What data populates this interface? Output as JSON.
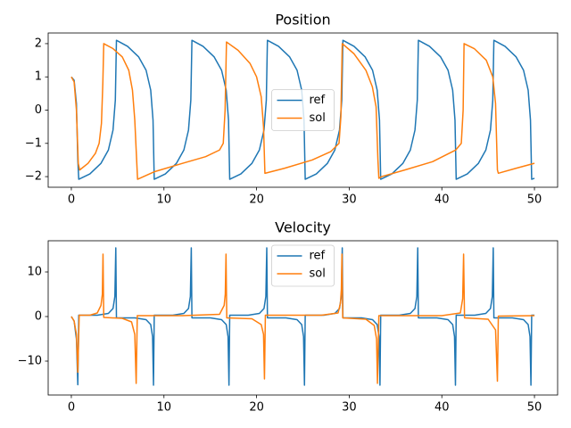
{
  "chart_data": [
    {
      "type": "line",
      "title": "Position",
      "xlim": [
        -2.5,
        52.5
      ],
      "ylim": [
        -2.32,
        2.32
      ],
      "xticks": [
        0,
        10,
        20,
        30,
        40,
        50
      ],
      "yticks": [
        {
          "value": -2,
          "label": "−2"
        },
        {
          "value": -1,
          "label": "−1"
        },
        0,
        1,
        2
      ],
      "legend": "center",
      "series": [
        {
          "name": "ref",
          "color": "#1f77b4",
          "x": [
            0,
            0.3,
            0.55,
            0.7,
            0.8,
            2.0,
            3.2,
            4.0,
            4.5,
            4.75,
            4.87,
            6.07,
            7.27,
            8.07,
            8.57,
            8.82,
            8.95,
            10.15,
            11.35,
            12.15,
            12.65,
            12.9,
            13.02,
            14.22,
            15.42,
            16.22,
            16.72,
            16.97,
            17.1,
            18.3,
            19.5,
            20.3,
            20.8,
            21.05,
            21.17,
            22.37,
            23.57,
            24.37,
            24.87,
            25.12,
            25.25,
            26.45,
            27.65,
            28.45,
            28.95,
            29.2,
            29.32,
            30.52,
            31.72,
            32.52,
            33.02,
            33.27,
            33.4,
            34.6,
            35.8,
            36.6,
            37.1,
            37.35,
            37.47,
            38.67,
            39.87,
            40.67,
            41.17,
            41.42,
            41.55,
            42.75,
            43.95,
            44.75,
            45.25,
            45.5,
            45.62,
            46.82,
            48.02,
            48.82,
            49.32,
            49.57,
            49.7,
            50
          ],
          "values": [
            1.0,
            0.9,
            0.2,
            -1.5,
            -2.08,
            -1.92,
            -1.6,
            -1.2,
            -0.6,
            0.3,
            2.1,
            1.92,
            1.6,
            1.2,
            0.6,
            -0.3,
            -2.08,
            -1.92,
            -1.6,
            -1.2,
            -0.6,
            0.3,
            2.1,
            1.92,
            1.6,
            1.2,
            0.6,
            -0.3,
            -2.08,
            -1.92,
            -1.6,
            -1.2,
            -0.6,
            0.3,
            2.1,
            1.92,
            1.6,
            1.2,
            0.6,
            -0.3,
            -2.08,
            -1.92,
            -1.6,
            -1.2,
            -0.6,
            0.3,
            2.1,
            1.92,
            1.6,
            1.2,
            0.6,
            -0.3,
            -2.08,
            -1.92,
            -1.6,
            -1.2,
            -0.6,
            0.3,
            2.1,
            1.92,
            1.6,
            1.2,
            0.6,
            -0.3,
            -2.08,
            -1.92,
            -1.6,
            -1.2,
            -0.6,
            0.3,
            2.1,
            1.92,
            1.6,
            1.2,
            0.6,
            -0.3,
            -2.08,
            -2.05
          ]
        },
        {
          "name": "sol",
          "color": "#ff7f0e",
          "x": [
            0,
            0.3,
            0.55,
            0.75,
            0.9,
            1.8,
            2.6,
            3.0,
            3.25,
            3.4,
            3.5,
            4.5,
            5.5,
            6.2,
            6.6,
            6.85,
            7.0,
            7.15,
            9.0,
            12.0,
            14.5,
            16.0,
            16.4,
            16.6,
            16.75,
            18.0,
            19.3,
            20.0,
            20.5,
            20.75,
            20.9,
            23.0,
            26.0,
            28.0,
            28.9,
            29.1,
            29.25,
            30.5,
            31.8,
            32.5,
            32.9,
            33.1,
            33.2,
            33.5,
            36.0,
            39.0,
            41.5,
            42.1,
            42.3,
            42.4,
            43.5,
            44.8,
            45.5,
            45.8,
            46.0,
            46.1,
            48.0,
            50.0
          ],
          "values": [
            1.0,
            0.85,
            0.0,
            -1.6,
            -1.8,
            -1.6,
            -1.3,
            -1.0,
            -0.4,
            0.8,
            2.0,
            1.85,
            1.6,
            1.2,
            0.6,
            -0.3,
            -1.2,
            -2.08,
            -1.85,
            -1.6,
            -1.4,
            -1.2,
            -1.0,
            0.0,
            2.05,
            1.8,
            1.4,
            1.0,
            0.4,
            -0.5,
            -1.9,
            -1.75,
            -1.5,
            -1.25,
            -1.0,
            -0.2,
            2.0,
            1.7,
            1.2,
            0.7,
            0.1,
            -1.5,
            -2.05,
            -2.0,
            -1.8,
            -1.55,
            -1.2,
            -1.0,
            0.0,
            2.0,
            1.85,
            1.5,
            1.0,
            0.2,
            -1.8,
            -1.9,
            -1.75,
            -1.6
          ]
        }
      ]
    },
    {
      "type": "line",
      "title": "Velocity",
      "xlim": [
        -2.5,
        52.5
      ],
      "ylim": [
        -17.6,
        17
      ],
      "xticks": [
        0,
        10,
        20,
        30,
        40,
        50
      ],
      "yticks": [
        {
          "value": -10,
          "label": "−10"
        },
        0,
        10
      ],
      "legend": "upper center",
      "series": [
        {
          "name": "ref",
          "color": "#1f77b4",
          "x": [
            0,
            0.3,
            0.55,
            0.7,
            0.8,
            2.8,
            4.0,
            4.5,
            4.7,
            4.8,
            4.87,
            6.87,
            8.07,
            8.57,
            8.77,
            8.87,
            8.95,
            10.95,
            12.15,
            12.65,
            12.85,
            12.95,
            13.02,
            15.02,
            16.22,
            16.72,
            16.92,
            17.02,
            17.1,
            19.1,
            20.3,
            20.8,
            21.0,
            21.1,
            21.17,
            23.17,
            24.37,
            24.87,
            25.07,
            25.17,
            25.25,
            27.25,
            28.45,
            28.95,
            29.15,
            29.25,
            29.32,
            31.32,
            32.52,
            33.02,
            33.22,
            33.32,
            33.4,
            35.4,
            36.6,
            37.1,
            37.3,
            37.4,
            37.47,
            39.47,
            40.67,
            41.17,
            41.37,
            41.47,
            41.55,
            43.55,
            44.75,
            45.25,
            45.45,
            45.55,
            45.62,
            47.62,
            48.82,
            49.32,
            49.52,
            49.62,
            49.7,
            50
          ],
          "values": [
            0,
            -1,
            -5,
            -15.3,
            0.3,
            0.3,
            0.7,
            1.8,
            4.5,
            15.4,
            -0.3,
            -0.3,
            -0.7,
            -1.8,
            -4.5,
            -15.4,
            0.3,
            0.3,
            0.7,
            1.8,
            4.5,
            15.4,
            -0.3,
            -0.3,
            -0.7,
            -1.8,
            -4.5,
            -15.4,
            0.3,
            0.3,
            0.7,
            1.8,
            4.5,
            15.4,
            -0.3,
            -0.3,
            -0.7,
            -1.8,
            -4.5,
            -15.4,
            0.3,
            0.3,
            0.7,
            1.8,
            4.5,
            15.4,
            -0.3,
            -0.3,
            -0.7,
            -1.8,
            -4.5,
            -15.4,
            0.3,
            0.3,
            0.7,
            1.8,
            4.5,
            15.4,
            -0.3,
            -0.3,
            -0.7,
            -1.8,
            -4.5,
            -15.4,
            0.3,
            0.3,
            0.7,
            1.8,
            4.5,
            15.4,
            -0.3,
            -0.3,
            -0.7,
            -1.8,
            -4.5,
            -15.4,
            0.3,
            0.3
          ]
        },
        {
          "name": "sol",
          "color": "#ff7f0e",
          "x": [
            0,
            0.3,
            0.55,
            0.7,
            0.85,
            2.0,
            2.8,
            3.2,
            3.35,
            3.42,
            3.5,
            5.5,
            6.5,
            6.85,
            7.0,
            7.12,
            12.0,
            16.0,
            16.5,
            16.62,
            16.7,
            16.78,
            19.5,
            20.5,
            20.75,
            20.85,
            20.95,
            27.0,
            28.8,
            29.05,
            29.15,
            29.22,
            29.3,
            31.8,
            32.7,
            32.95,
            33.05,
            33.2,
            40.0,
            42.0,
            42.25,
            42.35,
            42.45,
            45.0,
            45.8,
            46.0,
            46.1,
            50.0
          ],
          "values": [
            0,
            -1,
            -4,
            -12.5,
            0.3,
            0.3,
            0.8,
            2.5,
            5,
            14,
            -0.2,
            -0.4,
            -1.2,
            -4,
            -15,
            0.2,
            0.2,
            0.5,
            2.5,
            5,
            14,
            -0.3,
            -0.5,
            -1.8,
            -4,
            -14,
            0.3,
            0.3,
            0.8,
            3,
            6,
            14,
            -0.3,
            -0.6,
            -2,
            -5,
            -15,
            0.2,
            0.2,
            0.8,
            4,
            14,
            -0.3,
            -0.6,
            -3,
            -14.5,
            0.1,
            0.2
          ]
        }
      ]
    }
  ]
}
